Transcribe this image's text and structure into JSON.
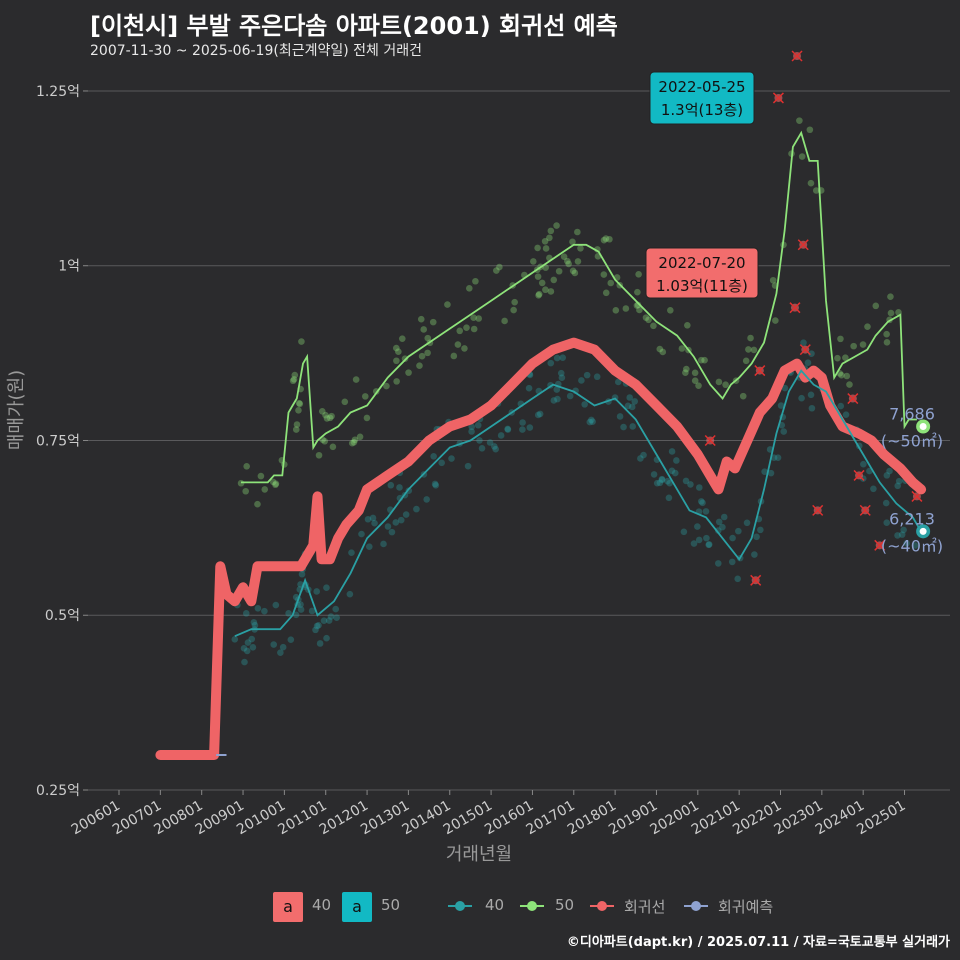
{
  "title": "[이천시] 부발 주은다솜 아파트(2001) 회귀선 예측",
  "subtitle": "2007-11-30 ~ 2025-06-19(최근계약일) 전체 거래건",
  "footer": "©디아파트(dapt.kr) / 2025.07.11 / 자료=국토교통부 실거래가",
  "colors": {
    "s40": "#2aa0a4",
    "s50": "#8ee37a",
    "reg": "#ef6466",
    "pred": "#8fa2d0",
    "box40": "#f26d6d",
    "box50": "#12b9c4"
  },
  "legend": {
    "box1_char": "a",
    "box1_label": "40",
    "box2_char": "a",
    "box2_label": "50",
    "l1": "40",
    "l2": "50",
    "l3": "회귀선",
    "l4": "회귀예측"
  },
  "annotations": [
    {
      "date": "2022-05-25",
      "price": "1.3억(13층)"
    },
    {
      "date": "2022-07-20",
      "price": "1.03억(11층)"
    }
  ],
  "end_labels": [
    {
      "value": "7,686",
      "area": "(~50㎡)"
    },
    {
      "value": "6,213",
      "area": "(~40㎡)"
    }
  ],
  "chart_data": {
    "type": "line",
    "xlabel": "거래년월",
    "ylabel": "매매가(원)",
    "x_ticks": [
      "200601",
      "200701",
      "200801",
      "200901",
      "201001",
      "201101",
      "201201",
      "201301",
      "201401",
      "201501",
      "201601",
      "201701",
      "201801",
      "201901",
      "202001",
      "202101",
      "202201",
      "202301",
      "202401",
      "202501"
    ],
    "y_ticks": [
      "0.25억",
      "0.5억",
      "0.75억",
      "1억",
      "1.25억"
    ],
    "y_tick_values": [
      0.25,
      0.5,
      0.75,
      1.0,
      1.25
    ],
    "ylim": [
      0.25,
      1.28
    ],
    "xlim": [
      2005.25,
      2026.1
    ],
    "grid": true,
    "series": [
      {
        "name": "50",
        "unit": "억",
        "x": [
          2008.95,
          2009.3,
          2009.6,
          2009.75,
          2009.95,
          2010.1,
          2010.2,
          2010.3,
          2010.45,
          2010.55,
          2010.7,
          2010.8,
          2011.0,
          2011.3,
          2011.6,
          2012.0,
          2012.5,
          2013.0,
          2013.5,
          2014.0,
          2014.5,
          2015.0,
          2015.5,
          2016.0,
          2016.5,
          2017.0,
          2017.3,
          2017.6,
          2018.0,
          2018.5,
          2019.0,
          2019.5,
          2019.9,
          2020.3,
          2020.6,
          2020.8,
          2021.0,
          2021.3,
          2021.6,
          2021.9,
          2022.1,
          2022.3,
          2022.5,
          2022.7,
          2022.9,
          2023.1,
          2023.3,
          2023.5,
          2023.8,
          2024.1,
          2024.3,
          2024.6,
          2024.9,
          2025.0,
          2025.1,
          2025.3
        ],
        "y": [
          0.69,
          0.69,
          0.69,
          0.7,
          0.7,
          0.79,
          0.8,
          0.81,
          0.86,
          0.87,
          0.74,
          0.75,
          0.76,
          0.77,
          0.79,
          0.8,
          0.84,
          0.87,
          0.89,
          0.91,
          0.93,
          0.95,
          0.97,
          0.99,
          1.01,
          1.03,
          1.03,
          1.02,
          0.98,
          0.95,
          0.92,
          0.9,
          0.87,
          0.83,
          0.81,
          0.83,
          0.84,
          0.86,
          0.89,
          0.96,
          1.05,
          1.17,
          1.19,
          1.15,
          1.15,
          0.95,
          0.84,
          0.86,
          0.87,
          0.88,
          0.9,
          0.92,
          0.93,
          0.77,
          0.78,
          0.78
        ]
      },
      {
        "name": "40",
        "unit": "억",
        "x": [
          2008.8,
          2009.2,
          2009.6,
          2009.9,
          2010.2,
          2010.5,
          2010.8,
          2011.2,
          2011.6,
          2012.0,
          2012.5,
          2013.0,
          2013.5,
          2014.0,
          2014.5,
          2015.0,
          2015.5,
          2016.0,
          2016.5,
          2017.0,
          2017.5,
          2018.0,
          2018.5,
          2019.0,
          2019.4,
          2019.8,
          2020.2,
          2020.6,
          2021.0,
          2021.3,
          2021.6,
          2021.9,
          2022.2,
          2022.5,
          2022.8,
          2023.1,
          2023.4,
          2023.7,
          2024.0,
          2024.4,
          2024.8,
          2025.2,
          2025.4
        ],
        "y": [
          0.47,
          0.48,
          0.48,
          0.48,
          0.5,
          0.55,
          0.5,
          0.52,
          0.56,
          0.61,
          0.64,
          0.68,
          0.71,
          0.74,
          0.75,
          0.77,
          0.79,
          0.81,
          0.83,
          0.82,
          0.8,
          0.81,
          0.78,
          0.73,
          0.69,
          0.65,
          0.64,
          0.61,
          0.58,
          0.61,
          0.68,
          0.76,
          0.82,
          0.85,
          0.83,
          0.82,
          0.79,
          0.76,
          0.73,
          0.69,
          0.66,
          0.64,
          0.62
        ]
      },
      {
        "name": "회귀선",
        "unit": "억",
        "x": [
          2007.0,
          2007.9,
          2008.3,
          2008.45,
          2008.6,
          2008.8,
          2009.0,
          2009.2,
          2009.35,
          2009.5,
          2010.0,
          2010.4,
          2010.7,
          2010.8,
          2010.9,
          2011.1,
          2011.3,
          2011.5,
          2011.8,
          2012.0,
          2012.5,
          2013.0,
          2013.5,
          2014.0,
          2014.5,
          2015.0,
          2015.5,
          2016.0,
          2016.5,
          2017.0,
          2017.5,
          2018.0,
          2018.5,
          2019.0,
          2019.5,
          2020.0,
          2020.4,
          2020.5,
          2020.7,
          2020.9,
          2021.2,
          2021.5,
          2021.8,
          2022.1,
          2022.4,
          2022.6,
          2022.8,
          2023.0,
          2023.2,
          2023.5,
          2023.9,
          2024.2,
          2024.5,
          2024.9,
          2025.2,
          2025.4
        ],
        "y": [
          0.3,
          0.3,
          0.3,
          0.57,
          0.53,
          0.52,
          0.54,
          0.52,
          0.57,
          0.57,
          0.57,
          0.57,
          0.6,
          0.67,
          0.58,
          0.58,
          0.61,
          0.63,
          0.65,
          0.68,
          0.7,
          0.72,
          0.75,
          0.77,
          0.78,
          0.8,
          0.83,
          0.86,
          0.88,
          0.89,
          0.88,
          0.85,
          0.83,
          0.8,
          0.77,
          0.73,
          0.69,
          0.68,
          0.72,
          0.71,
          0.75,
          0.79,
          0.81,
          0.85,
          0.86,
          0.84,
          0.85,
          0.84,
          0.8,
          0.77,
          0.76,
          0.75,
          0.73,
          0.71,
          0.69,
          0.68
        ]
      },
      {
        "name": "회귀예측",
        "unit": "억",
        "x": [
          2008.35,
          2008.6
        ],
        "y": [
          0.3,
          0.3
        ]
      }
    ],
    "endpoints": [
      {
        "series": "50",
        "x": 2025.45,
        "y": 0.77
      },
      {
        "series": "40",
        "x": 2025.45,
        "y": 0.62
      }
    ],
    "highlights": [
      {
        "x": 2022.4,
        "y": 1.3
      },
      {
        "x": 2022.55,
        "y": 1.03
      }
    ],
    "outliers": [
      {
        "x": 2020.3,
        "y": 0.75
      },
      {
        "x": 2021.4,
        "y": 0.55
      },
      {
        "x": 2021.5,
        "y": 0.85
      },
      {
        "x": 2021.95,
        "y": 1.24
      },
      {
        "x": 2022.4,
        "y": 1.3
      },
      {
        "x": 2022.55,
        "y": 1.03
      },
      {
        "x": 2022.35,
        "y": 0.94
      },
      {
        "x": 2022.6,
        "y": 0.88
      },
      {
        "x": 2022.9,
        "y": 0.65
      },
      {
        "x": 2023.75,
        "y": 0.81
      },
      {
        "x": 2023.9,
        "y": 0.7
      },
      {
        "x": 2024.05,
        "y": 0.65
      },
      {
        "x": 2024.4,
        "y": 0.6
      },
      {
        "x": 2025.3,
        "y": 0.67
      }
    ]
  }
}
